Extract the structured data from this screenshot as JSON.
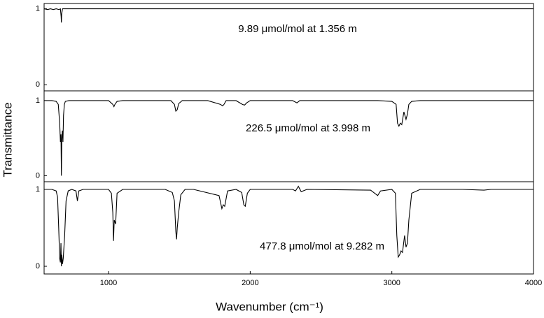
{
  "chart_data": [
    {
      "type": "line",
      "annotation": "9.89 μmol/mol at 1.356 m",
      "xlim": [
        545,
        4000
      ],
      "ylim": [
        -0.08,
        1.07
      ],
      "yticks": [
        0,
        1
      ],
      "series": [
        {
          "color": "#000000",
          "x": [
            545,
            570,
            590,
            610,
            630,
            650,
            660,
            665,
            667,
            669,
            675,
            700,
            1000,
            1500,
            2000,
            2500,
            3000,
            3500,
            4000
          ],
          "values": [
            1.0,
            0.99,
            1.0,
            0.99,
            1.0,
            0.99,
            1.0,
            0.9,
            0.82,
            0.93,
            1.0,
            1.0,
            1.0,
            1.0,
            1.0,
            1.0,
            1.0,
            1.0,
            1.0
          ]
        }
      ]
    },
    {
      "type": "line",
      "annotation": "226.5 μmol/mol at 3.998 m",
      "ylabel": "Transmittance",
      "xlim": [
        545,
        4000
      ],
      "ylim": [
        -0.08,
        1.13
      ],
      "yticks": [
        0,
        1
      ],
      "series": [
        {
          "color": "#000000",
          "x": [
            545,
            600,
            630,
            645,
            655,
            660,
            664,
            667,
            670,
            674,
            678,
            682,
            688,
            695,
            720,
            1000,
            1030,
            1038,
            1045,
            1060,
            1100,
            1440,
            1465,
            1475,
            1485,
            1495,
            1520,
            1700,
            1790,
            1805,
            1815,
            1830,
            1900,
            1945,
            1960,
            1975,
            2000,
            2300,
            2330,
            2350,
            2400,
            2900,
            3000,
            3030,
            3040,
            3050,
            3060,
            3070,
            3085,
            3100,
            3110,
            3120,
            3140,
            3200,
            4000
          ],
          "values": [
            1.0,
            1.0,
            0.99,
            0.95,
            0.7,
            0.45,
            0.55,
            0.0,
            0.5,
            0.6,
            0.45,
            0.8,
            0.95,
            0.99,
            1.0,
            1.0,
            0.95,
            0.92,
            0.95,
            0.99,
            1.0,
            1.0,
            0.95,
            0.86,
            0.88,
            0.96,
            1.0,
            1.0,
            0.95,
            0.93,
            0.95,
            1.0,
            1.0,
            0.95,
            0.94,
            0.97,
            1.0,
            1.0,
            0.97,
            1.0,
            1.0,
            1.0,
            0.99,
            0.95,
            0.7,
            0.66,
            0.7,
            0.68,
            0.85,
            0.75,
            0.82,
            0.95,
            0.99,
            1.0,
            1.0
          ]
        }
      ]
    },
    {
      "type": "line",
      "annotation": "477.8 μmol/mol at 9.282 m",
      "xlabel": "Wavenumber (cm⁻¹)",
      "xlim": [
        545,
        4000
      ],
      "xticks": [
        1000,
        2000,
        3000,
        4000
      ],
      "ylim": [
        -0.1,
        1.1
      ],
      "yticks": [
        0,
        1
      ],
      "series": [
        {
          "color": "#000000",
          "x": [
            545,
            600,
            630,
            640,
            648,
            655,
            660,
            664,
            667,
            670,
            675,
            680,
            690,
            700,
            715,
            740,
            770,
            780,
            790,
            820,
            1000,
            1020,
            1030,
            1035,
            1040,
            1050,
            1060,
            1100,
            1400,
            1450,
            1465,
            1475,
            1480,
            1485,
            1495,
            1510,
            1540,
            1600,
            1780,
            1800,
            1810,
            1820,
            1840,
            1900,
            1940,
            1955,
            1965,
            1980,
            2000,
            2300,
            2320,
            2340,
            2360,
            2400,
            2850,
            2900,
            2920,
            3000,
            3025,
            3035,
            3045,
            3055,
            3065,
            3075,
            3090,
            3100,
            3110,
            3120,
            3140,
            3200,
            3500,
            3650,
            3700,
            4000
          ],
          "values": [
            1.0,
            1.0,
            0.98,
            0.9,
            0.5,
            0.1,
            0.05,
            0.3,
            0.0,
            0.15,
            0.03,
            0.1,
            0.4,
            0.85,
            0.98,
            1.0,
            0.98,
            0.85,
            0.98,
            1.0,
            1.0,
            0.95,
            0.7,
            0.33,
            0.6,
            0.55,
            0.95,
            1.0,
            1.0,
            0.96,
            0.85,
            0.45,
            0.35,
            0.5,
            0.7,
            0.93,
            1.0,
            1.0,
            0.92,
            0.75,
            0.8,
            0.78,
            0.98,
            1.0,
            0.96,
            0.8,
            0.78,
            0.95,
            1.0,
            1.0,
            0.98,
            1.04,
            0.97,
            1.0,
            0.99,
            0.92,
            0.98,
            1.0,
            0.95,
            0.4,
            0.12,
            0.15,
            0.2,
            0.18,
            0.4,
            0.25,
            0.3,
            0.6,
            0.95,
            1.0,
            1.0,
            0.99,
            1.0,
            1.0
          ]
        }
      ]
    }
  ]
}
